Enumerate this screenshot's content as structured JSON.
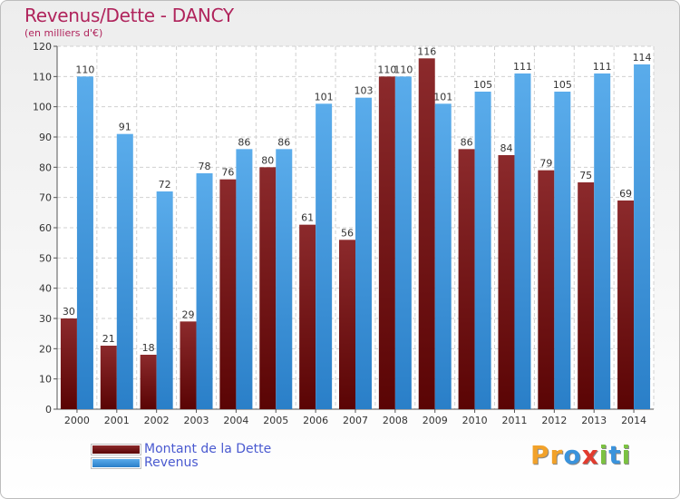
{
  "colors": {
    "debt": "#6d1416",
    "revenue": "#3a93dc",
    "title": "#b0245c",
    "legend_text": "#4a5ad0"
  },
  "chart_data": {
    "type": "bar",
    "title": "Revenus/Dette - DANCY",
    "subtitle": "(en milliers d'€)",
    "categories": [
      "2000",
      "2001",
      "2002",
      "2003",
      "2004",
      "2005",
      "2006",
      "2007",
      "2008",
      "2009",
      "2010",
      "2011",
      "2012",
      "2013",
      "2014"
    ],
    "series": [
      {
        "name": "Montant de la Dette",
        "values": [
          30,
          21,
          18,
          29,
          76,
          80,
          61,
          56,
          110,
          116,
          86,
          84,
          79,
          75,
          69
        ]
      },
      {
        "name": "Revenus",
        "values": [
          110,
          91,
          72,
          78,
          86,
          86,
          101,
          103,
          110,
          101,
          105,
          111,
          105,
          111,
          114
        ]
      }
    ],
    "yticks": [
      0,
      10,
      20,
      30,
      40,
      50,
      60,
      70,
      80,
      90,
      100,
      110,
      120
    ],
    "ylim": [
      0,
      120
    ],
    "grid": true,
    "legend_position": "bottom-left"
  },
  "legend": {
    "items": [
      "Montant de la Dette",
      "Revenus"
    ]
  },
  "logo": {
    "letters": [
      "P",
      "r",
      "o",
      "x",
      "i",
      "t",
      "i"
    ],
    "colors": [
      "#f2a22a",
      "#f2a22a",
      "#3a93dc",
      "#e23b2e",
      "#7cc242",
      "#3a93dc",
      "#7cc242"
    ]
  }
}
